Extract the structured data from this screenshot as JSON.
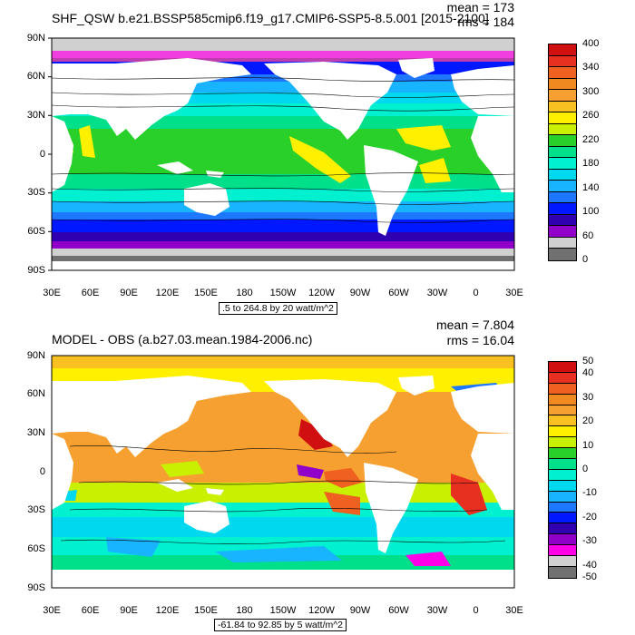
{
  "panels": [
    {
      "title": "SHF_QSW b.e21.BSSP585cmip6.f19_g17.CMIP6-SSP5-8.5.001 [2015-2100]",
      "mean": "mean = 173",
      "rms": "rms = 184",
      "caption": ".5 to 264.8 by 20 watt/m^2",
      "y_ticks": [
        "90N",
        "60N",
        "30N",
        "0",
        "30S",
        "60S",
        "90S"
      ],
      "x_ticks": [
        "30E",
        "60E",
        "90E",
        "120E",
        "150E",
        "180",
        "150W",
        "120W",
        "90W",
        "60W",
        "30W",
        "0",
        "30E"
      ],
      "colorbar_labels": [
        "400",
        "",
        "340",
        "",
        "300",
        "",
        "260",
        "",
        "220",
        "",
        "180",
        "",
        "140",
        "",
        "100",
        "",
        "60",
        "",
        "0"
      ],
      "colorbar_colors": [
        "#d01010",
        "#e83020",
        "#f06020",
        "#f08a20",
        "#f5a030",
        "#f8c020",
        "#fff000",
        "#c8f000",
        "#2ad02a",
        "#00e08a",
        "#00f0d0",
        "#00d8f0",
        "#18b4ff",
        "#1e78ff",
        "#0018ff",
        "#3000b0",
        "#9000c8",
        "#d0d0d0",
        "#707070"
      ]
    },
    {
      "title": "MODEL - OBS (a.b27.03.mean.1984-2006.nc)",
      "mean": "mean = 7.804",
      "rms": "rms = 16.04",
      "caption": "-61.84 to 92.85 by 5 watt/m^2",
      "y_ticks": [
        "90N",
        "60N",
        "30N",
        "0",
        "30S",
        "60S",
        "90S"
      ],
      "x_ticks": [
        "30E",
        "60E",
        "90E",
        "120E",
        "150E",
        "180",
        "150W",
        "120W",
        "90W",
        "60W",
        "30W",
        "0",
        "30E"
      ],
      "colorbar_labels": [
        "50",
        "40",
        "",
        "30",
        "",
        "20",
        "",
        "10",
        "",
        "0",
        "",
        "-10",
        "",
        "-20",
        "",
        "-30",
        "",
        "-40",
        "-50"
      ],
      "colorbar_colors": [
        "#d01010",
        "#e83020",
        "#f06020",
        "#f08a20",
        "#f5a030",
        "#f8c020",
        "#fff000",
        "#c8f000",
        "#2ad02a",
        "#00e08a",
        "#00f0d0",
        "#00d8f0",
        "#18b4ff",
        "#1e78ff",
        "#0018ff",
        "#3000b0",
        "#9000c8",
        "#ff00e8",
        "#d0d0d0",
        "#707070"
      ]
    }
  ]
}
